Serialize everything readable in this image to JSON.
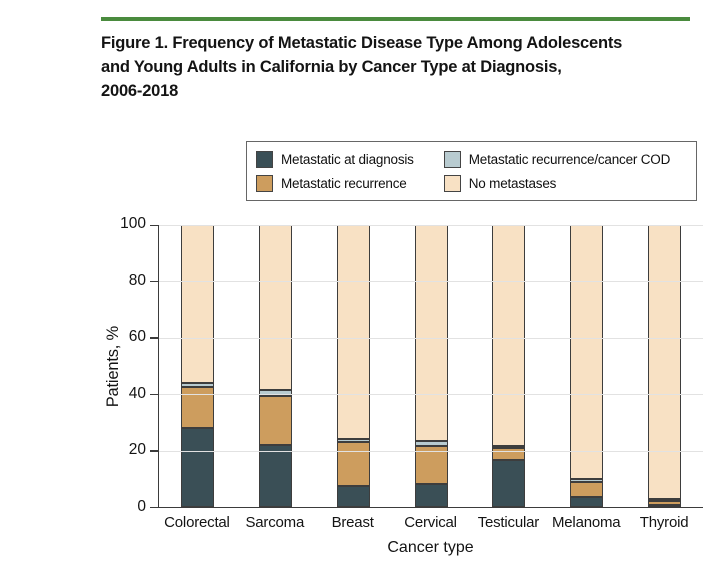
{
  "figure": {
    "rule_color": "#4a8b3e",
    "title_lines": [
      "Figure 1. Frequency of Metastatic Disease Type Among Adolescents",
      "and Young Adults in California by Cancer Type at Diagnosis,",
      "2006-2018"
    ]
  },
  "legend": {
    "items": [
      {
        "label": "Metastatic at diagnosis",
        "color": "#3a4f56"
      },
      {
        "label": "Metastatic recurrence",
        "color": "#cd9d5e"
      },
      {
        "label": "Metastatic recurrence/cancer COD",
        "color": "#b8cbd0"
      },
      {
        "label": "No metastases",
        "color": "#f8e1c4"
      }
    ]
  },
  "chart_data": {
    "type": "bar",
    "stacked": true,
    "title": "Frequency of Metastatic Disease Type Among Adolescents and Young Adults in California by Cancer Type at Diagnosis, 2006-2018",
    "categories": [
      "Colorectal",
      "Sarcoma",
      "Breast",
      "Cervical",
      "Testicular",
      "Melanoma",
      "Thyroid"
    ],
    "series": [
      {
        "name": "Metastatic at diagnosis",
        "color": "#3a4f56",
        "values": [
          28.0,
          22.0,
          7.5,
          8.0,
          16.5,
          3.5,
          0.5
        ]
      },
      {
        "name": "Metastatic recurrence",
        "color": "#cd9d5e",
        "values": [
          14.5,
          17.5,
          15.5,
          13.5,
          4.5,
          5.5,
          1.5
        ]
      },
      {
        "name": "Metastatic recurrence/cancer COD",
        "color": "#b8cbd0",
        "values": [
          1.5,
          2.0,
          1.0,
          2.0,
          0.5,
          1.0,
          0.2
        ]
      },
      {
        "name": "No metastases",
        "color": "#f8e1c4",
        "values": [
          56.0,
          58.5,
          76.0,
          76.5,
          78.5,
          90.0,
          97.8
        ]
      }
    ],
    "xlabel": "Cancer type",
    "ylabel": "Patients, %",
    "ylim": [
      0,
      100
    ],
    "yticks": [
      0,
      20,
      40,
      60,
      80,
      100
    ],
    "grid": "horizontal",
    "legend_position": "top"
  }
}
